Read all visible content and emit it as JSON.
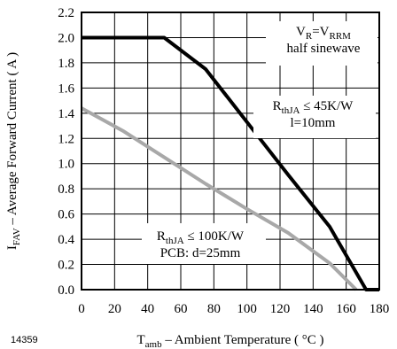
{
  "figure_id": "14359",
  "colors": {
    "series_1": "#000000",
    "series_2": "#a8a8a8",
    "axes": "#000000"
  },
  "chart_data": {
    "type": "line",
    "xlabel": {
      "main": "T",
      "sub": "amb",
      "rest": " – Ambient Temperature ( °C )"
    },
    "ylabel": {
      "main": "I",
      "sub": "FAV",
      "rest": " – Average Forward Current ( A )"
    },
    "xlim": [
      0,
      180
    ],
    "ylim": [
      0.0,
      2.2
    ],
    "x_ticks": [
      "0",
      "20",
      "40",
      "60",
      "80",
      "100",
      "120",
      "140",
      "160",
      "180"
    ],
    "y_ticks": [
      "0.0",
      "0.2",
      "0.4",
      "0.6",
      "0.8",
      "1.0",
      "1.2",
      "1.4",
      "1.6",
      "1.8",
      "2.0",
      "2.2"
    ],
    "grid": true,
    "series": [
      {
        "color": "#000000",
        "points": [
          [
            0,
            2.0
          ],
          [
            50,
            2.0
          ],
          [
            75,
            1.75
          ],
          [
            100,
            1.33
          ],
          [
            125,
            0.91
          ],
          [
            150,
            0.5
          ],
          [
            172,
            0.0
          ],
          [
            180,
            0.0
          ]
        ]
      },
      {
        "color": "#a8a8a8",
        "points": [
          [
            0,
            1.44
          ],
          [
            25,
            1.26
          ],
          [
            50,
            1.05
          ],
          [
            75,
            0.84
          ],
          [
            100,
            0.64
          ],
          [
            125,
            0.45
          ],
          [
            150,
            0.21
          ],
          [
            166,
            0.0
          ]
        ]
      }
    ],
    "annotations": [
      {
        "id": "conditions",
        "lines": [
          [
            {
              "t": "V"
            },
            {
              "t": "R",
              "sub": true
            },
            {
              "t": "=V"
            },
            {
              "t": "RRM",
              "sub": true
            }
          ],
          [
            {
              "t": "half sinewave"
            }
          ]
        ]
      },
      {
        "id": "series_1_label",
        "lines": [
          [
            {
              "t": "R"
            },
            {
              "t": "thJA",
              "sub": true
            },
            {
              "t": " ≤ 45K/W"
            }
          ],
          [
            {
              "t": "l=10mm"
            }
          ]
        ]
      },
      {
        "id": "series_2_label",
        "lines": [
          [
            {
              "t": "R"
            },
            {
              "t": "thJA",
              "sub": true
            },
            {
              "t": " ≤ 100K/W"
            }
          ],
          [
            {
              "t": "PCB: d=25mm"
            }
          ]
        ]
      }
    ]
  }
}
